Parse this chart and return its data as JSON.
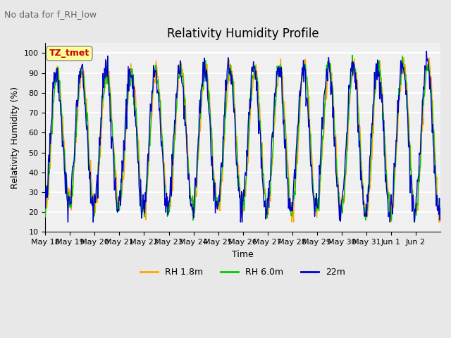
{
  "title": "Relativity Humidity Profile",
  "suptitle": "No data for f_RH_low",
  "xlabel": "Time",
  "ylabel": "Relativity Humidity (%)",
  "ylim": [
    10,
    105
  ],
  "yticks": [
    10,
    20,
    30,
    40,
    50,
    60,
    70,
    80,
    90,
    100
  ],
  "xtick_labels": [
    "May 18",
    "May 19",
    "May 20",
    "May 21",
    "May 22",
    "May 23",
    "May 24",
    "May 25",
    "May 26",
    "May 27",
    "May 28",
    "May 29",
    "May 30",
    "May 31",
    "Jun 1",
    "Jun 2"
  ],
  "legend_label_box": "TZ_tmet",
  "legend_labels": [
    "RH 1.8m",
    "RH 6.0m",
    "22m"
  ],
  "color_orange": "#FFA500",
  "color_green": "#00CC00",
  "color_blue": "#0000CC",
  "bg_color": "#E8E8E8",
  "plot_bg": "#F0F0F0",
  "grid_color": "#FFFFFF",
  "n_days": 16,
  "periods_per_day": 48
}
